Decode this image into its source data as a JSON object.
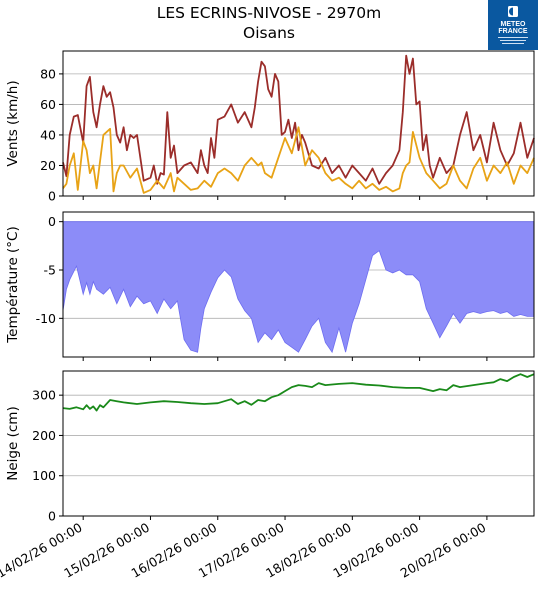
{
  "header": {
    "title": "LES ECRINS-NIVOSE - 2970m",
    "subtitle": "Oisans"
  },
  "logo": {
    "name": "METEO FRANCE",
    "line1": "METEO",
    "line2": "FRANCE",
    "bg_color": "#0a58a0"
  },
  "chart_data": [
    {
      "type": "line",
      "ylabel": "Vents (km/h)",
      "ylim": [
        0,
        95
      ],
      "yticks": [
        0,
        20,
        40,
        60,
        80
      ],
      "grid": "horizontal",
      "x_days_start": 13.7,
      "x_days_end": 20.7,
      "series": [
        {
          "color": "#9b2d2a",
          "x": [
            13.7,
            13.75,
            13.8,
            13.86,
            13.92,
            14.0,
            14.05,
            14.1,
            14.15,
            14.2,
            14.25,
            14.3,
            14.35,
            14.4,
            14.45,
            14.5,
            14.55,
            14.6,
            14.65,
            14.7,
            14.75,
            14.8,
            14.9,
            15.0,
            15.05,
            15.1,
            15.15,
            15.2,
            15.25,
            15.3,
            15.35,
            15.4,
            15.5,
            15.6,
            15.7,
            15.75,
            15.8,
            15.85,
            15.9,
            15.95,
            16.0,
            16.1,
            16.2,
            16.3,
            16.4,
            16.5,
            16.55,
            16.6,
            16.65,
            16.7,
            16.75,
            16.8,
            16.85,
            16.9,
            16.95,
            17.0,
            17.05,
            17.1,
            17.15,
            17.2,
            17.25,
            17.3,
            17.4,
            17.5,
            17.6,
            17.7,
            17.8,
            17.9,
            18.0,
            18.1,
            18.2,
            18.3,
            18.4,
            18.5,
            18.6,
            18.7,
            18.75,
            18.8,
            18.85,
            18.9,
            18.95,
            19.0,
            19.05,
            19.1,
            19.15,
            19.2,
            19.3,
            19.4,
            19.5,
            19.6,
            19.7,
            19.8,
            19.9,
            20.0,
            20.1,
            20.2,
            20.3,
            20.4,
            20.5,
            20.6,
            20.7
          ],
          "y": [
            22,
            13,
            40,
            52,
            53,
            35,
            72,
            78,
            55,
            45,
            60,
            72,
            65,
            68,
            58,
            40,
            35,
            45,
            30,
            40,
            38,
            40,
            10,
            12,
            20,
            8,
            15,
            14,
            55,
            25,
            33,
            15,
            20,
            22,
            15,
            30,
            20,
            15,
            38,
            25,
            50,
            52,
            60,
            48,
            55,
            45,
            58,
            75,
            88,
            85,
            70,
            65,
            80,
            75,
            40,
            42,
            50,
            38,
            48,
            30,
            40,
            35,
            20,
            18,
            25,
            15,
            20,
            12,
            20,
            15,
            10,
            18,
            8,
            15,
            20,
            30,
            55,
            92,
            80,
            90,
            60,
            62,
            30,
            40,
            20,
            12,
            25,
            15,
            20,
            40,
            55,
            30,
            40,
            22,
            48,
            30,
            20,
            28,
            48,
            25,
            38
          ]
        },
        {
          "color": "#e8a316",
          "x": [
            13.7,
            13.75,
            13.8,
            13.86,
            13.92,
            14.0,
            14.05,
            14.1,
            14.15,
            14.2,
            14.3,
            14.4,
            14.45,
            14.5,
            14.55,
            14.6,
            14.7,
            14.8,
            14.9,
            15.0,
            15.1,
            15.2,
            15.3,
            15.35,
            15.4,
            15.5,
            15.6,
            15.7,
            15.8,
            15.9,
            16.0,
            16.1,
            16.2,
            16.3,
            16.4,
            16.5,
            16.6,
            16.65,
            16.7,
            16.8,
            16.9,
            17.0,
            17.1,
            17.2,
            17.3,
            17.4,
            17.5,
            17.6,
            17.7,
            17.8,
            17.9,
            18.0,
            18.1,
            18.2,
            18.3,
            18.4,
            18.5,
            18.6,
            18.7,
            18.75,
            18.8,
            18.85,
            18.9,
            19.0,
            19.1,
            19.2,
            19.3,
            19.4,
            19.5,
            19.6,
            19.7,
            19.8,
            19.9,
            20.0,
            20.1,
            20.2,
            20.3,
            20.4,
            20.5,
            20.6,
            20.7
          ],
          "y": [
            5,
            8,
            20,
            28,
            4,
            36,
            30,
            15,
            20,
            5,
            40,
            44,
            3,
            15,
            20,
            20,
            12,
            18,
            2,
            4,
            10,
            5,
            15,
            3,
            12,
            8,
            4,
            5,
            10,
            6,
            15,
            18,
            15,
            10,
            20,
            25,
            20,
            22,
            15,
            12,
            25,
            38,
            28,
            45,
            20,
            30,
            25,
            15,
            10,
            12,
            8,
            5,
            10,
            5,
            8,
            4,
            6,
            3,
            5,
            15,
            20,
            22,
            42,
            25,
            15,
            10,
            5,
            8,
            20,
            10,
            5,
            18,
            25,
            10,
            20,
            15,
            22,
            8,
            20,
            15,
            25
          ]
        }
      ]
    },
    {
      "type": "area",
      "ylabel": "Température (°C)",
      "ylim": [
        -14,
        1
      ],
      "yticks": [
        0,
        -5,
        -10
      ],
      "grid": "horizontal",
      "color": "#8c8cf8",
      "series": [
        {
          "color": "#8c8cf8",
          "x": [
            13.7,
            13.75,
            13.8,
            13.9,
            14.0,
            14.05,
            14.1,
            14.15,
            14.2,
            14.3,
            14.4,
            14.5,
            14.6,
            14.7,
            14.8,
            14.9,
            15.0,
            15.1,
            15.2,
            15.3,
            15.4,
            15.5,
            15.6,
            15.7,
            15.75,
            15.8,
            15.9,
            16.0,
            16.1,
            16.2,
            16.3,
            16.4,
            16.5,
            16.6,
            16.7,
            16.8,
            16.9,
            17.0,
            17.1,
            17.2,
            17.3,
            17.4,
            17.5,
            17.6,
            17.7,
            17.8,
            17.9,
            18.0,
            18.1,
            18.2,
            18.3,
            18.4,
            18.5,
            18.6,
            18.7,
            18.8,
            18.9,
            19.0,
            19.1,
            19.2,
            19.3,
            19.4,
            19.5,
            19.6,
            19.7,
            19.8,
            19.9,
            20.0,
            20.1,
            20.2,
            20.3,
            20.4,
            20.5,
            20.6,
            20.7
          ],
          "y": [
            -9.2,
            -7,
            -6,
            -4.6,
            -7.5,
            -6.3,
            -7.5,
            -6.2,
            -7.0,
            -7.5,
            -6.8,
            -8.5,
            -7.0,
            -8.8,
            -7.7,
            -8.5,
            -8.2,
            -9.5,
            -8.0,
            -9.0,
            -8.2,
            -12.2,
            -13.3,
            -13.5,
            -11,
            -9.0,
            -7.3,
            -5.8,
            -5.0,
            -5.7,
            -8.0,
            -9.2,
            -10.0,
            -12.5,
            -11.5,
            -12.2,
            -11.2,
            -12.5,
            -13.0,
            -13.5,
            -12.2,
            -10.8,
            -10.0,
            -12.5,
            -13.5,
            -11.0,
            -13.5,
            -10.5,
            -8.5,
            -6.0,
            -3.5,
            -3.0,
            -5.0,
            -5.3,
            -5.0,
            -5.5,
            -5.5,
            -6.2,
            -9.0,
            -10.5,
            -12.0,
            -10.8,
            -9.5,
            -10.5,
            -9.5,
            -9.3,
            -9.5,
            -9.3,
            -9.2,
            -9.5,
            -9.3,
            -9.8,
            -9.6,
            -9.8,
            -9.8
          ]
        }
      ]
    },
    {
      "type": "line",
      "ylabel": "Neige (cm)",
      "ylim": [
        0,
        360
      ],
      "yticks": [
        0,
        100,
        200,
        300
      ],
      "grid": "horizontal",
      "xtick_labels": [
        "14/02/26 00:00",
        "15/02/26 00:00",
        "16/02/26 00:00",
        "17/02/26 00:00",
        "18/02/26 00:00",
        "19/02/26 00:00",
        "20/02/26 00:00"
      ],
      "series": [
        {
          "color": "#1a8a1a",
          "x": [
            13.7,
            13.8,
            13.9,
            14.0,
            14.05,
            14.1,
            14.15,
            14.2,
            14.25,
            14.3,
            14.4,
            14.5,
            14.6,
            14.8,
            15.0,
            15.2,
            15.4,
            15.6,
            15.8,
            16.0,
            16.2,
            16.3,
            16.4,
            16.5,
            16.6,
            16.7,
            16.8,
            16.9,
            17.0,
            17.1,
            17.2,
            17.3,
            17.4,
            17.5,
            17.6,
            17.8,
            18.0,
            18.2,
            18.4,
            18.6,
            18.8,
            19.0,
            19.2,
            19.3,
            19.4,
            19.5,
            19.6,
            19.8,
            20.0,
            20.1,
            20.2,
            20.3,
            20.4,
            20.5,
            20.6,
            20.7
          ],
          "y": [
            268,
            266,
            270,
            265,
            275,
            266,
            272,
            262,
            275,
            270,
            288,
            285,
            282,
            278,
            282,
            285,
            283,
            280,
            278,
            280,
            290,
            278,
            285,
            276,
            288,
            285,
            295,
            300,
            310,
            320,
            325,
            323,
            320,
            330,
            325,
            328,
            330,
            326,
            324,
            320,
            318,
            318,
            310,
            315,
            312,
            325,
            320,
            325,
            330,
            332,
            340,
            335,
            345,
            352,
            345,
            352
          ]
        }
      ]
    }
  ]
}
